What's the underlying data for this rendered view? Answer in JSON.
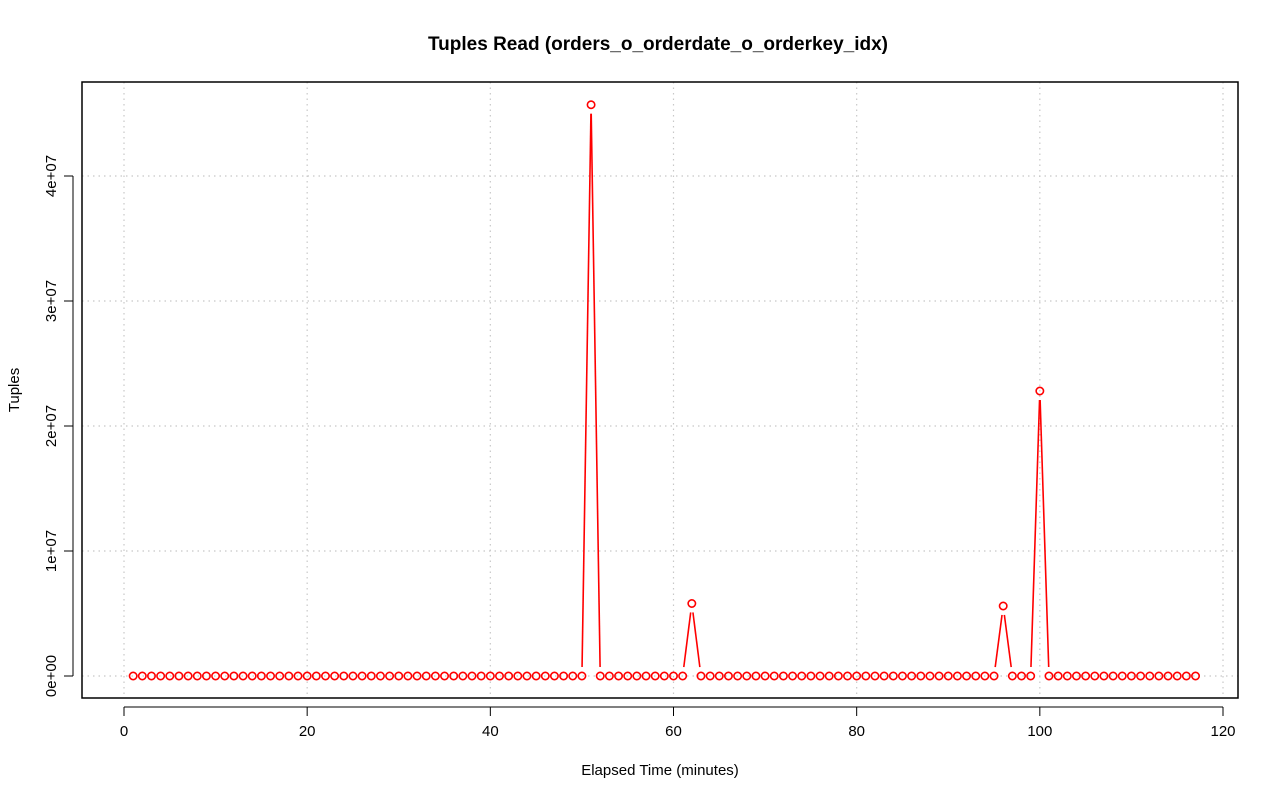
{
  "chart_data": {
    "type": "line",
    "title": "Tuples Read (orders_o_orderdate_o_orderkey_idx)",
    "xlabel": "Elapsed Time (minutes)",
    "ylabel": "Tuples",
    "xlim": [
      0,
      120
    ],
    "ylim": [
      0,
      45700000
    ],
    "x_ticks": [
      0,
      20,
      40,
      60,
      80,
      100,
      120
    ],
    "x_tick_labels": [
      "0",
      "20",
      "40",
      "60",
      "80",
      "100",
      "120"
    ],
    "y_ticks": [
      0,
      10000000,
      20000000,
      30000000,
      40000000
    ],
    "y_tick_labels": [
      "0e+00",
      "1e+07",
      "2e+07",
      "3e+07",
      "4e+07"
    ],
    "grid": true,
    "series_color": "#ff0000",
    "x_start": 1,
    "values": [
      0,
      0,
      0,
      0,
      0,
      0,
      0,
      0,
      0,
      0,
      0,
      0,
      0,
      0,
      0,
      0,
      0,
      0,
      0,
      0,
      0,
      0,
      0,
      0,
      0,
      0,
      0,
      0,
      0,
      0,
      0,
      0,
      0,
      0,
      0,
      0,
      0,
      0,
      0,
      0,
      0,
      0,
      0,
      0,
      0,
      0,
      0,
      0,
      0,
      0,
      45700000,
      0,
      0,
      0,
      0,
      0,
      0,
      0,
      0,
      0,
      0,
      5800000,
      0,
      0,
      0,
      0,
      0,
      0,
      0,
      0,
      0,
      0,
      0,
      0,
      0,
      0,
      0,
      0,
      0,
      0,
      0,
      0,
      0,
      0,
      0,
      0,
      0,
      0,
      0,
      0,
      0,
      0,
      0,
      0,
      0,
      5600000,
      0,
      0,
      0,
      22800000,
      0,
      0,
      0,
      0,
      0,
      0,
      0,
      0,
      0,
      0,
      0,
      0,
      0,
      0,
      0,
      0,
      0
    ]
  }
}
